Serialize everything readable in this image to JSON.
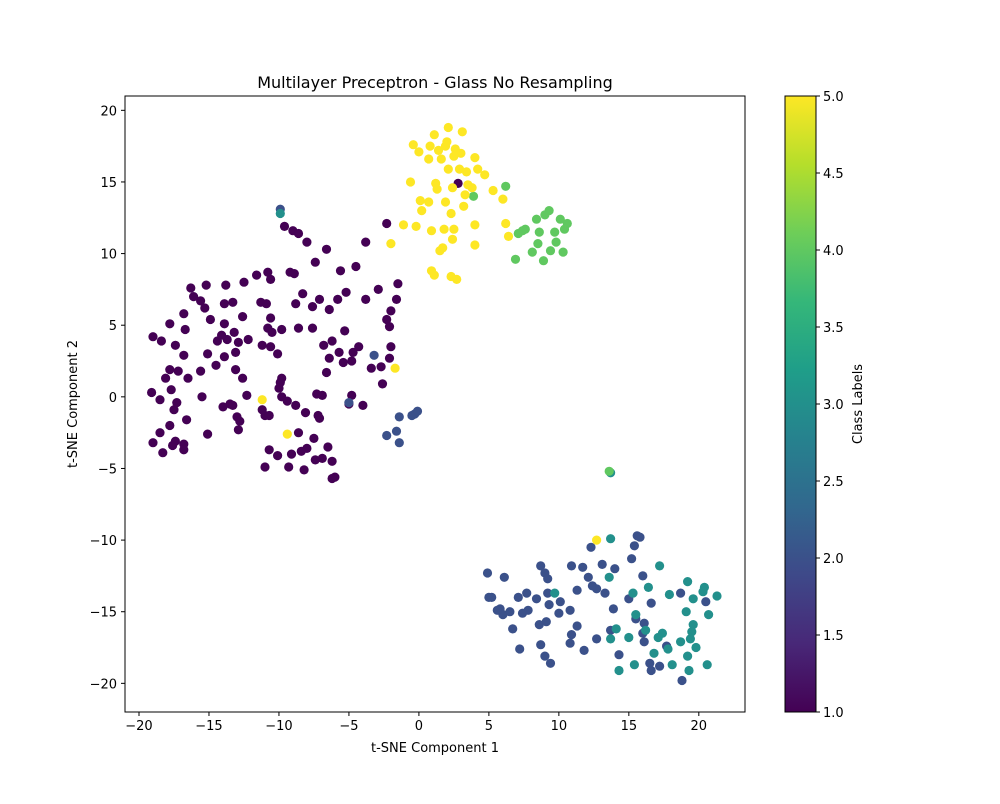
{
  "chart_data": {
    "type": "scatter",
    "title": "Multilayer Preceptron - Glass No Resampling",
    "xlabel": "t-SNE Component 1",
    "ylabel": "t-SNE Component 2",
    "xlim": [
      -21.0,
      23.3
    ],
    "ylim": [
      -22.0,
      21.0
    ],
    "xticks": [
      -20,
      -15,
      -10,
      -5,
      0,
      5,
      10,
      15,
      20
    ],
    "yticks": [
      -20,
      -15,
      -10,
      -5,
      0,
      5,
      10,
      15,
      20
    ],
    "grid": false,
    "colormap": "viridis",
    "colorbar": {
      "label": "Class Labels",
      "min": 1.0,
      "max": 5.0,
      "ticks": [
        "1.0",
        "1.5",
        "2.0",
        "2.5",
        "3.0",
        "3.5",
        "4.0",
        "4.5",
        "5.0"
      ]
    },
    "viridis_stops": [
      "#440154",
      "#482878",
      "#3e4989",
      "#31688e",
      "#26828e",
      "#1f9e89",
      "#35b779",
      "#6ece58",
      "#b5de2b",
      "#fde725"
    ],
    "points": [
      [
        -19,
        4.2,
        1
      ],
      [
        -18.4,
        3.9,
        1
      ],
      [
        -17.8,
        5.1,
        1
      ],
      [
        -16.8,
        5.8,
        1
      ],
      [
        -16.3,
        7.6,
        1
      ],
      [
        -15.6,
        6.7,
        1
      ],
      [
        -15.3,
        6.2,
        1
      ],
      [
        -15.2,
        7.8,
        1
      ],
      [
        -14.9,
        5.4,
        1
      ],
      [
        -13.9,
        6.5,
        1
      ],
      [
        -13.8,
        7.8,
        1
      ],
      [
        -13.3,
        6.6,
        1
      ],
      [
        -12.6,
        5.6,
        1
      ],
      [
        -11.6,
        8.5,
        1
      ],
      [
        -11.3,
        6.6,
        1
      ],
      [
        -10.8,
        8.7,
        1
      ],
      [
        -10.6,
        8.2,
        1
      ],
      [
        -10.6,
        5.5,
        1
      ],
      [
        -9.6,
        11.9,
        1
      ],
      [
        -9.2,
        8.7,
        1
      ],
      [
        -9.0,
        11.6,
        1
      ],
      [
        -8.6,
        11.4,
        1
      ],
      [
        -8.0,
        10.8,
        1
      ],
      [
        -7.4,
        9.4,
        1
      ],
      [
        -6.6,
        10.3,
        1
      ],
      [
        -5.6,
        8.8,
        1
      ],
      [
        -4.5,
        9.1,
        1
      ],
      [
        -3.8,
        10.8,
        1
      ],
      [
        -2.3,
        12.1,
        1
      ],
      [
        -1.5,
        7.9,
        1
      ],
      [
        -1.6,
        6.8,
        1
      ],
      [
        -2.0,
        6.0,
        1
      ],
      [
        -2.3,
        5.4,
        1
      ],
      [
        -2.9,
        7.5,
        1
      ],
      [
        -3.8,
        6.8,
        1
      ],
      [
        -5.2,
        7.3,
        1
      ],
      [
        -5.8,
        6.8,
        1
      ],
      [
        -6.4,
        6.1,
        1
      ],
      [
        -7.1,
        6.8,
        1
      ],
      [
        -7.6,
        6.3,
        1
      ],
      [
        -8.3,
        7.2,
        1
      ],
      [
        -8.8,
        6.5,
        1
      ],
      [
        -7.6,
        4.8,
        1
      ],
      [
        -8.6,
        4.8,
        1
      ],
      [
        -9.8,
        4.7,
        1
      ],
      [
        -10.8,
        4.8,
        1
      ],
      [
        -10.5,
        4.5,
        1
      ],
      [
        -11.2,
        3.6,
        1
      ],
      [
        -10.6,
        3.5,
        1
      ],
      [
        -12.9,
        3.8,
        1
      ],
      [
        -13.2,
        4.5,
        1
      ],
      [
        -13.7,
        4.0,
        1
      ],
      [
        -14.4,
        3.9,
        1
      ],
      [
        -13.9,
        5.1,
        1
      ],
      [
        -15.1,
        3.0,
        1
      ],
      [
        -16.7,
        4.7,
        1
      ],
      [
        -17.4,
        3.6,
        1
      ],
      [
        -16.8,
        2.9,
        1
      ],
      [
        -17.8,
        1.9,
        1
      ],
      [
        -18.1,
        1.3,
        1
      ],
      [
        -17.2,
        1.8,
        1
      ],
      [
        -16.5,
        1.3,
        1
      ],
      [
        -15.6,
        1.8,
        1
      ],
      [
        -14.5,
        2.2,
        1
      ],
      [
        -13.9,
        2.8,
        1
      ],
      [
        -13.1,
        3.1,
        1
      ],
      [
        -13.1,
        1.9,
        1
      ],
      [
        -12.6,
        1.3,
        1
      ],
      [
        -10.1,
        3.0,
        1
      ],
      [
        -9.8,
        1.3,
        1
      ],
      [
        -9.9,
        1.0,
        1
      ],
      [
        -10.0,
        0.6,
        1
      ],
      [
        -9.8,
        0.0,
        1
      ],
      [
        -9.4,
        -0.3,
        1
      ],
      [
        -8.8,
        -0.6,
        1
      ],
      [
        -8.1,
        -1.1,
        1
      ],
      [
        -7.3,
        0.2,
        1
      ],
      [
        -6.9,
        0.1,
        1
      ],
      [
        -7.2,
        -1.3,
        1
      ],
      [
        -6.6,
        1.7,
        1
      ],
      [
        -6.4,
        2.7,
        1
      ],
      [
        -6.8,
        3.6,
        1
      ],
      [
        -6.2,
        3.9,
        1
      ],
      [
        -5.7,
        3.1,
        1
      ],
      [
        -5.3,
        4.6,
        1
      ],
      [
        -5.4,
        2.4,
        1
      ],
      [
        -4.8,
        2.5,
        1
      ],
      [
        -4.7,
        3.1,
        1
      ],
      [
        -4.3,
        3.5,
        1
      ],
      [
        -3.4,
        2.0,
        1
      ],
      [
        -2.7,
        2.1,
        1
      ],
      [
        -2.6,
        0.9,
        1
      ],
      [
        -2.0,
        3.5,
        1
      ],
      [
        -2.1,
        2.7,
        1
      ],
      [
        -2.1,
        4.9,
        1
      ],
      [
        -4.0,
        -0.6,
        1
      ],
      [
        -4.8,
        0.1,
        1
      ],
      [
        -5.0,
        -0.5,
        1
      ],
      [
        -7.1,
        -1.5,
        1
      ],
      [
        -7.5,
        -2.9,
        1
      ],
      [
        -6.5,
        -3.5,
        1
      ],
      [
        -6.9,
        -4.3,
        1
      ],
      [
        -8.0,
        -3.6,
        1
      ],
      [
        -8.4,
        -3.8,
        1
      ],
      [
        -8.6,
        -2.5,
        1
      ],
      [
        -9.1,
        -4.0,
        1
      ],
      [
        -9.3,
        -4.9,
        1
      ],
      [
        -8.2,
        -5.1,
        1
      ],
      [
        -7.4,
        -4.4,
        1
      ],
      [
        -6.2,
        -4.5,
        1
      ],
      [
        -6.0,
        -5.6,
        1
      ],
      [
        -6.2,
        -5.7,
        1
      ],
      [
        -10.1,
        -4.1,
        1
      ],
      [
        -11.0,
        -4.9,
        1
      ],
      [
        -10.7,
        -3.7,
        1
      ],
      [
        -11.2,
        -0.9,
        1
      ],
      [
        -11.0,
        -1.3,
        1
      ],
      [
        -10.7,
        -1.3,
        1
      ],
      [
        -12.8,
        -1.7,
        1
      ],
      [
        -13.0,
        -1.4,
        1
      ],
      [
        -12.9,
        -2.3,
        1
      ],
      [
        -13.5,
        -0.5,
        1
      ],
      [
        -13.3,
        -0.6,
        1
      ],
      [
        -12.3,
        0.1,
        1
      ],
      [
        -14.0,
        -0.7,
        1
      ],
      [
        -15.1,
        -2.6,
        1
      ],
      [
        -15.5,
        0.0,
        1
      ],
      [
        -16.6,
        -1.6,
        1
      ],
      [
        -16.8,
        -3.3,
        1
      ],
      [
        -16.8,
        -3.7,
        1
      ],
      [
        -17.4,
        -3.1,
        1
      ],
      [
        -17.6,
        -3.4,
        1
      ],
      [
        -18.3,
        -3.9,
        1
      ],
      [
        -19.0,
        -3.2,
        1
      ],
      [
        -18.5,
        -2.5,
        1
      ],
      [
        -17.8,
        -2.0,
        1
      ],
      [
        -17.5,
        -0.9,
        1
      ],
      [
        -17.3,
        -0.4,
        1
      ],
      [
        -17.7,
        0.5,
        1
      ],
      [
        -18.5,
        -0.2,
        1
      ],
      [
        -19.1,
        0.3,
        1
      ],
      [
        -12.2,
        4.0,
        1
      ],
      [
        -14.1,
        4.3,
        1
      ],
      [
        -16.1,
        7.0,
        1
      ],
      [
        -12.5,
        8.0,
        1
      ],
      [
        -10.9,
        6.5,
        1
      ],
      [
        -8.9,
        8.6,
        1
      ],
      [
        2.8,
        14.9,
        1
      ],
      [
        -9.9,
        13.1,
        2
      ],
      [
        -3.2,
        2.9,
        2
      ],
      [
        -5.0,
        -0.4,
        2
      ],
      [
        -1.4,
        -1.4,
        2
      ],
      [
        -0.3,
        -1.2,
        2
      ],
      [
        -0.5,
        -1.3,
        2
      ],
      [
        -0.1,
        -1.0,
        2
      ],
      [
        -2.3,
        -2.7,
        2
      ],
      [
        -1.6,
        -2.4,
        2
      ],
      [
        -1.4,
        -3.2,
        2
      ],
      [
        12.3,
        -10.5,
        2
      ],
      [
        15.6,
        -9.7,
        2
      ],
      [
        15.4,
        -10.4,
        2
      ],
      [
        15.8,
        -9.8,
        2
      ],
      [
        15.2,
        -11.3,
        2
      ],
      [
        14.0,
        -12.0,
        2
      ],
      [
        13.1,
        -11.7,
        2
      ],
      [
        11.7,
        -11.9,
        2
      ],
      [
        10.9,
        -11.8,
        2
      ],
      [
        8.7,
        -11.8,
        2
      ],
      [
        9.0,
        -12.3,
        2
      ],
      [
        9.2,
        -12.7,
        2
      ],
      [
        6.1,
        -12.6,
        2
      ],
      [
        4.9,
        -12.3,
        2
      ],
      [
        5.0,
        -14.0,
        2
      ],
      [
        5.2,
        -14.0,
        2
      ],
      [
        5.8,
        -14.8,
        2
      ],
      [
        6.0,
        -15.2,
        2
      ],
      [
        6.5,
        -15.0,
        2
      ],
      [
        7.1,
        -14.0,
        2
      ],
      [
        7.7,
        -13.7,
        2
      ],
      [
        7.8,
        -14.9,
        2
      ],
      [
        7.4,
        -15.1,
        2
      ],
      [
        8.4,
        -14.1,
        2
      ],
      [
        8.6,
        -15.9,
        2
      ],
      [
        9.1,
        -15.7,
        2
      ],
      [
        9.3,
        -14.5,
        2
      ],
      [
        9.2,
        -13.7,
        2
      ],
      [
        10.1,
        -14.3,
        2
      ],
      [
        10.8,
        -14.9,
        2
      ],
      [
        10.9,
        -16.6,
        2
      ],
      [
        10.8,
        -17.2,
        2
      ],
      [
        11.8,
        -17.7,
        2
      ],
      [
        11.3,
        -16.0,
        2
      ],
      [
        11.3,
        -13.5,
        2
      ],
      [
        12.1,
        -12.6,
        2
      ],
      [
        12.4,
        -13.2,
        2
      ],
      [
        12.7,
        -13.4,
        2
      ],
      [
        13.3,
        -13.7,
        2
      ],
      [
        13.9,
        -14.8,
        2
      ],
      [
        13.7,
        -16.3,
        2
      ],
      [
        12.7,
        -16.9,
        2
      ],
      [
        14.3,
        -18.0,
        2
      ],
      [
        15.0,
        -14.1,
        2
      ],
      [
        15.5,
        -15.5,
        2
      ],
      [
        16.1,
        -15.8,
        2
      ],
      [
        16.1,
        -17.1,
        2
      ],
      [
        16.5,
        -18.6,
        2
      ],
      [
        16.6,
        -19.1,
        2
      ],
      [
        17.2,
        -18.8,
        2
      ],
      [
        17.7,
        -17.4,
        2
      ],
      [
        18.7,
        -13.7,
        2
      ],
      [
        18.8,
        -19.8,
        2
      ],
      [
        20.5,
        -14.3,
        2
      ],
      [
        16.0,
        -12.5,
        2
      ],
      [
        16.6,
        -14.4,
        2
      ],
      [
        8.7,
        -17.3,
        2
      ],
      [
        9.4,
        -18.6,
        2
      ],
      [
        10.0,
        -15.1,
        2
      ],
      [
        7.2,
        -17.6,
        2
      ],
      [
        6.7,
        -16.2,
        2
      ],
      [
        5.6,
        -14.9,
        2
      ],
      [
        9.0,
        -18.1,
        2
      ],
      [
        16.0,
        -16.5,
        2
      ],
      [
        -9.9,
        12.8,
        3
      ],
      [
        13.7,
        -9.9,
        3
      ],
      [
        13.6,
        -12.6,
        3
      ],
      [
        15.3,
        -13.7,
        3
      ],
      [
        16.4,
        -13.3,
        3
      ],
      [
        17.2,
        -11.8,
        3
      ],
      [
        17.9,
        -13.8,
        3
      ],
      [
        19.2,
        -12.9,
        3
      ],
      [
        20.4,
        -13.3,
        3
      ],
      [
        21.3,
        -13.9,
        3
      ],
      [
        20.7,
        -15.2,
        3
      ],
      [
        19.6,
        -15.9,
        3
      ],
      [
        19.5,
        -16.4,
        3
      ],
      [
        19.4,
        -16.9,
        3
      ],
      [
        18.7,
        -17.1,
        3
      ],
      [
        19.8,
        -17.5,
        3
      ],
      [
        19.2,
        -18.1,
        3
      ],
      [
        19.3,
        -19.1,
        3
      ],
      [
        20.6,
        -18.7,
        3
      ],
      [
        18.1,
        -18.7,
        3
      ],
      [
        17.8,
        -17.6,
        3
      ],
      [
        17.4,
        -16.5,
        3
      ],
      [
        17.1,
        -16.8,
        3
      ],
      [
        16.2,
        -16.3,
        3
      ],
      [
        15.5,
        -15.2,
        3
      ],
      [
        15.0,
        -16.8,
        3
      ],
      [
        13.7,
        -16.9,
        3
      ],
      [
        14.1,
        -16.2,
        3
      ],
      [
        15.4,
        -18.7,
        3
      ],
      [
        14.3,
        -19.1,
        3
      ],
      [
        16.8,
        -17.9,
        3
      ],
      [
        19.1,
        -15.0,
        3
      ],
      [
        19.6,
        -14.1,
        3
      ],
      [
        20.3,
        -13.6,
        3
      ],
      [
        9.7,
        -13.7,
        3
      ],
      [
        13.7,
        -5.3,
        3
      ],
      [
        13.6,
        -5.2,
        4
      ],
      [
        6.2,
        14.7,
        4
      ],
      [
        3.9,
        14.0,
        4
      ],
      [
        9.3,
        13.0,
        4
      ],
      [
        9.0,
        12.7,
        4
      ],
      [
        10.1,
        12.4,
        4
      ],
      [
        10.6,
        12.1,
        4
      ],
      [
        8.4,
        12.4,
        4
      ],
      [
        10.4,
        11.7,
        4
      ],
      [
        9.7,
        11.5,
        4
      ],
      [
        8.6,
        11.5,
        4
      ],
      [
        7.6,
        11.7,
        4
      ],
      [
        7.4,
        11.6,
        4
      ],
      [
        7.1,
        11.4,
        4
      ],
      [
        8.5,
        10.7,
        4
      ],
      [
        9.8,
        10.8,
        4
      ],
      [
        10.3,
        10.1,
        4
      ],
      [
        9.4,
        10.2,
        4
      ],
      [
        8.1,
        10.1,
        4
      ],
      [
        6.9,
        9.6,
        4
      ],
      [
        8.9,
        9.5,
        4
      ],
      [
        1.1,
        18.3,
        5
      ],
      [
        2.1,
        18.8,
        5
      ],
      [
        3.1,
        18.5,
        5
      ],
      [
        -0.4,
        17.6,
        5
      ],
      [
        0.0,
        17.1,
        5
      ],
      [
        1.4,
        17.2,
        5
      ],
      [
        1.9,
        17.5,
        5
      ],
      [
        2.6,
        17.3,
        5
      ],
      [
        3.0,
        17.0,
        5
      ],
      [
        2.5,
        16.8,
        5
      ],
      [
        1.6,
        16.6,
        5
      ],
      [
        0.7,
        16.6,
        5
      ],
      [
        4.0,
        16.7,
        5
      ],
      [
        2.1,
        15.9,
        5
      ],
      [
        2.9,
        15.9,
        5
      ],
      [
        3.4,
        15.7,
        5
      ],
      [
        4.2,
        15.9,
        5
      ],
      [
        4.7,
        15.5,
        5
      ],
      [
        -0.6,
        15.0,
        5
      ],
      [
        1.2,
        14.9,
        5
      ],
      [
        1.3,
        14.5,
        5
      ],
      [
        2.4,
        14.6,
        5
      ],
      [
        3.5,
        14.8,
        5
      ],
      [
        3.8,
        14.6,
        5
      ],
      [
        5.3,
        14.4,
        5
      ],
      [
        6.0,
        13.8,
        5
      ],
      [
        0.1,
        13.7,
        5
      ],
      [
        0.7,
        13.6,
        5
      ],
      [
        1.9,
        13.6,
        5
      ],
      [
        3.2,
        13.3,
        5
      ],
      [
        0.2,
        13.0,
        5
      ],
      [
        2.3,
        12.8,
        5
      ],
      [
        -1.1,
        12.0,
        5
      ],
      [
        -0.2,
        11.9,
        5
      ],
      [
        0.9,
        11.6,
        5
      ],
      [
        1.8,
        11.7,
        5
      ],
      [
        2.5,
        11.7,
        5
      ],
      [
        4.0,
        12.0,
        5
      ],
      [
        6.2,
        12.1,
        5
      ],
      [
        6.4,
        11.2,
        5
      ],
      [
        2.4,
        11.0,
        5
      ],
      [
        1.7,
        10.4,
        5
      ],
      [
        1.5,
        10.2,
        5
      ],
      [
        4.0,
        10.6,
        5
      ],
      [
        -2.0,
        10.7,
        5
      ],
      [
        0.9,
        8.8,
        5
      ],
      [
        1.1,
        8.5,
        5
      ],
      [
        2.3,
        8.4,
        5
      ],
      [
        2.7,
        8.2,
        5
      ],
      [
        -1.7,
        2.0,
        5
      ],
      [
        -11.2,
        -0.2,
        5
      ],
      [
        -9.4,
        -2.6,
        5
      ],
      [
        12.7,
        -10.0,
        5
      ],
      [
        2.0,
        17.8,
        5
      ],
      [
        0.8,
        17.5,
        5
      ],
      [
        3.3,
        14.1,
        5
      ]
    ]
  }
}
